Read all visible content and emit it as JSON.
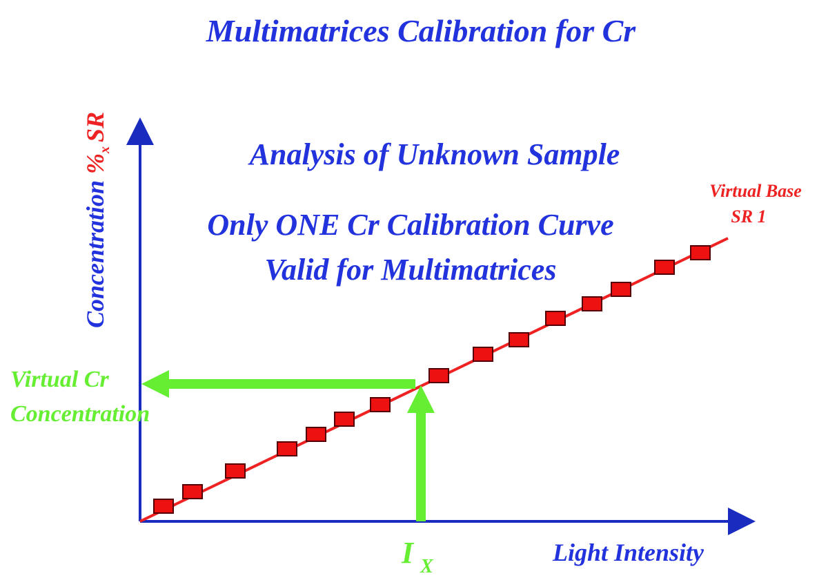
{
  "title": "Multimatrices Calibration for Cr",
  "y_axis": {
    "label": "Concentration",
    "unit": "%",
    "subscript": "x",
    "suffix": "SR"
  },
  "x_axis": {
    "label": "Light Intensity"
  },
  "notes": [
    "Analysis of Unknown Sample",
    "Only ONE Cr Calibration Curve",
    "Valid for Multimatrices"
  ],
  "curve_label": [
    "Virtual Base",
    "SR  1"
  ],
  "result_label": [
    "Virtual Cr",
    "Concentration"
  ],
  "intensity_label": {
    "main": "I",
    "subscript": "X"
  }
}
